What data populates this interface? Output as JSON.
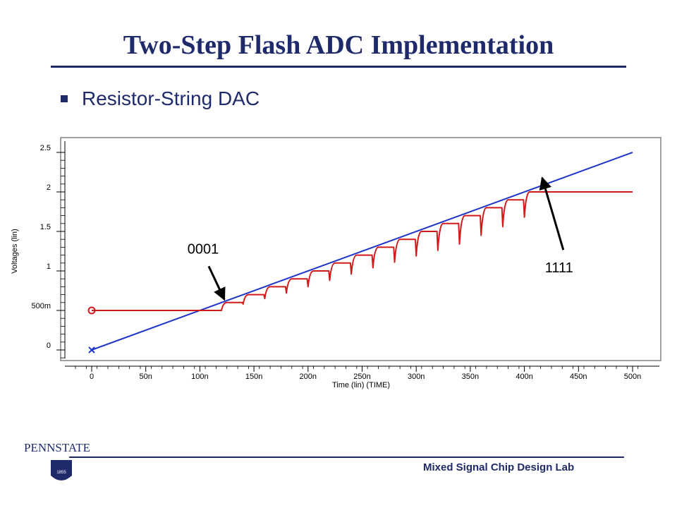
{
  "slide": {
    "title": "Two-Step Flash ADC Implementation",
    "bullet": "Resistor-String DAC"
  },
  "footer": {
    "logo_text": "PENNSTATE",
    "logo_year": "1855",
    "lab": "Mixed Signal Chip Design Lab"
  },
  "chart_data": {
    "type": "line",
    "xlabel": "Time (lin) (TIME)",
    "ylabel": "Voltages (lin)",
    "xlim": [
      -25,
      510
    ],
    "ylim": [
      -0.18,
      2.6
    ],
    "x_ticks": [
      {
        "value": 0,
        "label": "0"
      },
      {
        "value": 50,
        "label": "50n"
      },
      {
        "value": 100,
        "label": "100n"
      },
      {
        "value": 150,
        "label": "150n"
      },
      {
        "value": 200,
        "label": "200n"
      },
      {
        "value": 250,
        "label": "250n"
      },
      {
        "value": 300,
        "label": "300n"
      },
      {
        "value": 350,
        "label": "350n"
      },
      {
        "value": 400,
        "label": "400n"
      },
      {
        "value": 450,
        "label": "450n"
      },
      {
        "value": 500,
        "label": "500n"
      }
    ],
    "y_ticks": [
      {
        "value": 0,
        "label": "0"
      },
      {
        "value": 0.5,
        "label": "500m"
      },
      {
        "value": 1,
        "label": "1"
      },
      {
        "value": 1.5,
        "label": "1.5"
      },
      {
        "value": 2,
        "label": "2"
      },
      {
        "value": 2.5,
        "label": "2.5"
      }
    ],
    "series": [
      {
        "color": "#1f35c8",
        "marker": "x",
        "x": [
          0,
          500
        ],
        "y": [
          0,
          2.5
        ]
      },
      {
        "color": "#d11a1a",
        "marker": "o",
        "steps": {
          "initial": 0.5,
          "final": 2.0,
          "step_start": 120,
          "step_period": 20,
          "step_size": 0.1,
          "count": 15,
          "dip_depths": [
            0,
            0.02,
            0.05,
            0.08,
            0.1,
            0.12,
            0.14,
            0.16,
            0.19,
            0.21,
            0.24,
            0.26,
            0.25,
            0.24,
            0.22
          ],
          "x_end": 500
        }
      }
    ],
    "annotations": [
      {
        "text": "0001",
        "x": 103,
        "y": 1.22,
        "arrow_to": [
          124,
          0.62
        ]
      },
      {
        "text": "1111",
        "x": 406,
        "y": 0.98,
        "arrow_to": [
          406,
          2.0
        ]
      }
    ]
  }
}
